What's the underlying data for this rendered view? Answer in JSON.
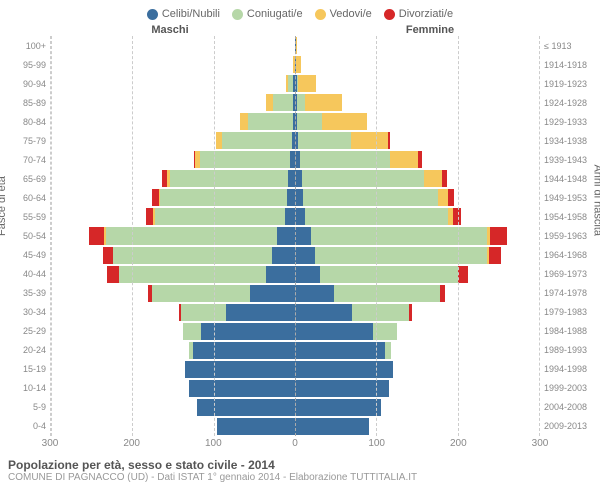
{
  "legend": [
    {
      "label": "Celibi/Nubili",
      "color": "#3b6e9e"
    },
    {
      "label": "Coniugati/e",
      "color": "#b6d7a8"
    },
    {
      "label": "Vedovi/e",
      "color": "#f6c75c"
    },
    {
      "label": "Divorziati/e",
      "color": "#d62728"
    }
  ],
  "headers": {
    "male": "Maschi",
    "female": "Femmine"
  },
  "ylabels": {
    "left": "Fasce di età",
    "right": "Anni di nascita"
  },
  "xlim": 300,
  "xticks": [
    300,
    200,
    100,
    0,
    100,
    200,
    300
  ],
  "age_groups": [
    "100+",
    "95-99",
    "90-94",
    "85-89",
    "80-84",
    "75-79",
    "70-74",
    "65-69",
    "60-64",
    "55-59",
    "50-54",
    "45-49",
    "40-44",
    "35-39",
    "30-34",
    "25-29",
    "20-24",
    "15-19",
    "10-14",
    "5-9",
    "0-4"
  ],
  "birth_years": [
    "≤ 1913",
    "1914-1918",
    "1919-1923",
    "1924-1928",
    "1929-1933",
    "1934-1938",
    "1939-1943",
    "1944-1948",
    "1949-1953",
    "1954-1958",
    "1959-1963",
    "1964-1968",
    "1969-1973",
    "1974-1978",
    "1979-1983",
    "1984-1988",
    "1989-1993",
    "1994-1998",
    "1999-2003",
    "2004-2008",
    "2009-2013"
  ],
  "male": [
    {
      "c": 0,
      "m": 0,
      "w": 0,
      "d": 0
    },
    {
      "c": 0,
      "m": 0,
      "w": 2,
      "d": 0
    },
    {
      "c": 2,
      "m": 6,
      "w": 3,
      "d": 0
    },
    {
      "c": 2,
      "m": 25,
      "w": 8,
      "d": 0
    },
    {
      "c": 2,
      "m": 55,
      "w": 10,
      "d": 0
    },
    {
      "c": 4,
      "m": 85,
      "w": 8,
      "d": 0
    },
    {
      "c": 6,
      "m": 110,
      "w": 6,
      "d": 2
    },
    {
      "c": 8,
      "m": 145,
      "w": 4,
      "d": 6
    },
    {
      "c": 10,
      "m": 155,
      "w": 2,
      "d": 8
    },
    {
      "c": 12,
      "m": 160,
      "w": 2,
      "d": 8
    },
    {
      "c": 22,
      "m": 210,
      "w": 2,
      "d": 18
    },
    {
      "c": 28,
      "m": 195,
      "w": 0,
      "d": 12
    },
    {
      "c": 35,
      "m": 180,
      "w": 0,
      "d": 15
    },
    {
      "c": 55,
      "m": 120,
      "w": 0,
      "d": 5
    },
    {
      "c": 85,
      "m": 55,
      "w": 0,
      "d": 2
    },
    {
      "c": 115,
      "m": 22,
      "w": 0,
      "d": 0
    },
    {
      "c": 125,
      "m": 5,
      "w": 0,
      "d": 0
    },
    {
      "c": 135,
      "m": 0,
      "w": 0,
      "d": 0
    },
    {
      "c": 130,
      "m": 0,
      "w": 0,
      "d": 0
    },
    {
      "c": 120,
      "m": 0,
      "w": 0,
      "d": 0
    },
    {
      "c": 95,
      "m": 0,
      "w": 0,
      "d": 0
    }
  ],
  "female": [
    {
      "c": 1,
      "m": 0,
      "w": 1,
      "d": 0
    },
    {
      "c": 1,
      "m": 0,
      "w": 6,
      "d": 0
    },
    {
      "c": 2,
      "m": 2,
      "w": 22,
      "d": 0
    },
    {
      "c": 2,
      "m": 10,
      "w": 45,
      "d": 0
    },
    {
      "c": 3,
      "m": 30,
      "w": 55,
      "d": 0
    },
    {
      "c": 4,
      "m": 65,
      "w": 45,
      "d": 2
    },
    {
      "c": 6,
      "m": 110,
      "w": 35,
      "d": 4
    },
    {
      "c": 8,
      "m": 150,
      "w": 22,
      "d": 6
    },
    {
      "c": 10,
      "m": 165,
      "w": 12,
      "d": 8
    },
    {
      "c": 12,
      "m": 175,
      "w": 6,
      "d": 10
    },
    {
      "c": 20,
      "m": 215,
      "w": 4,
      "d": 20
    },
    {
      "c": 25,
      "m": 210,
      "w": 2,
      "d": 15
    },
    {
      "c": 30,
      "m": 170,
      "w": 0,
      "d": 12
    },
    {
      "c": 48,
      "m": 130,
      "w": 0,
      "d": 6
    },
    {
      "c": 70,
      "m": 70,
      "w": 0,
      "d": 3
    },
    {
      "c": 95,
      "m": 30,
      "w": 0,
      "d": 0
    },
    {
      "c": 110,
      "m": 8,
      "w": 0,
      "d": 0
    },
    {
      "c": 120,
      "m": 0,
      "w": 0,
      "d": 0
    },
    {
      "c": 115,
      "m": 0,
      "w": 0,
      "d": 0
    },
    {
      "c": 105,
      "m": 0,
      "w": 0,
      "d": 0
    },
    {
      "c": 90,
      "m": 0,
      "w": 0,
      "d": 0
    }
  ],
  "colors": {
    "c": "#3b6e9e",
    "m": "#b6d7a8",
    "w": "#f6c75c",
    "d": "#d62728"
  },
  "title": "Popolazione per età, sesso e stato civile - 2014",
  "subtitle": "COMUNE DI PAGNACCO (UD) - Dati ISTAT 1° gennaio 2014 - Elaborazione TUTTITALIA.IT"
}
